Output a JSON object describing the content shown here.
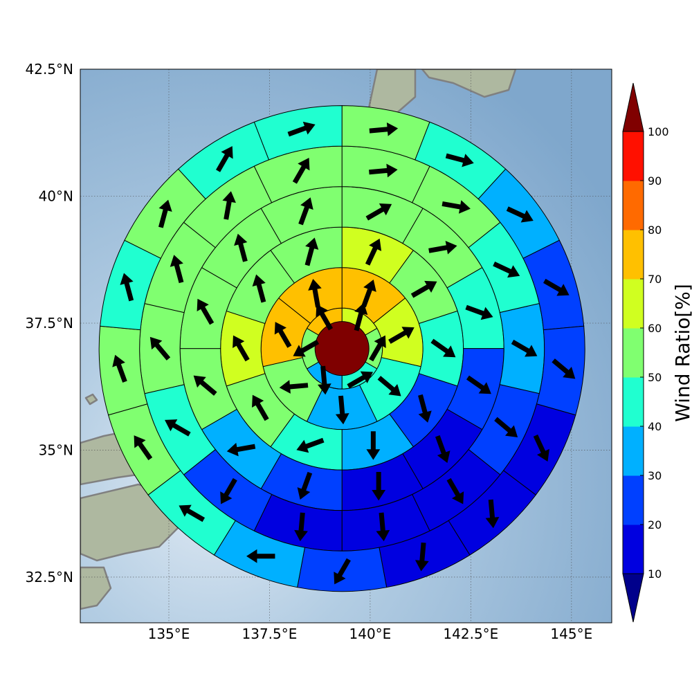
{
  "chart_data": {
    "type": "polar-sector-map",
    "title": "",
    "map": {
      "lon_range": [
        132.8,
        146.0
      ],
      "lat_range": [
        31.6,
        42.5
      ],
      "x_ticks": [
        {
          "value": 135,
          "label": "135°E"
        },
        {
          "value": 137.5,
          "label": "137.5°E"
        },
        {
          "value": 140,
          "label": "140°E"
        },
        {
          "value": 142.5,
          "label": "142.5°E"
        },
        {
          "value": 145,
          "label": "145°E"
        }
      ],
      "y_ticks": [
        {
          "value": 32.5,
          "label": "32.5°N"
        },
        {
          "value": 35,
          "label": "35°N"
        },
        {
          "value": 37.5,
          "label": "37.5°N"
        },
        {
          "value": 40,
          "label": "40°N"
        },
        {
          "value": 42.5,
          "label": "42.5°N"
        }
      ],
      "grid": true,
      "ocean_color": "#8fb4d6",
      "coast_color": "#808080",
      "land_color": "#aeb8a0"
    },
    "center": {
      "lon": 139.3,
      "lat": 37.0,
      "color": "#7f0000"
    },
    "rings": [
      {
        "ring": 1,
        "sectors": [
          {
            "value": 65,
            "dir": 15
          },
          {
            "value": 55,
            "dir": 30
          },
          {
            "value": 45,
            "dir": 60
          },
          {
            "value": 35,
            "dir": 175
          },
          {
            "value": 55,
            "dir": 240
          },
          {
            "value": 75,
            "dir": 330
          }
        ]
      },
      {
        "ring": 2,
        "sectors": [
          {
            "value": 75,
            "dir": 20
          },
          {
            "value": 65,
            "dir": 60
          },
          {
            "value": 45,
            "dir": 130
          },
          {
            "value": 35,
            "dir": 175
          },
          {
            "value": 55,
            "dir": 265
          },
          {
            "value": 75,
            "dir": 330
          },
          {
            "value": 75,
            "dir": 350
          }
        ]
      },
      {
        "ring": 3,
        "sectors": [
          {
            "value": 65,
            "dir": 25
          },
          {
            "value": 55,
            "dir": 60
          },
          {
            "value": 45,
            "dir": 125
          },
          {
            "value": 25,
            "dir": 165
          },
          {
            "value": 35,
            "dir": 180
          },
          {
            "value": 45,
            "dir": 250
          },
          {
            "value": 55,
            "dir": 330
          },
          {
            "value": 65,
            "dir": 330
          },
          {
            "value": 55,
            "dir": 345
          },
          {
            "value": 55,
            "dir": 15
          }
        ]
      },
      {
        "ring": 4,
        "sectors": [
          {
            "value": 55,
            "dir": 60
          },
          {
            "value": 55,
            "dir": 80
          },
          {
            "value": 45,
            "dir": 110
          },
          {
            "value": 25,
            "dir": 125
          },
          {
            "value": 15,
            "dir": 160
          },
          {
            "value": 15,
            "dir": 180
          },
          {
            "value": 25,
            "dir": 200
          },
          {
            "value": 35,
            "dir": 260
          },
          {
            "value": 55,
            "dir": 310
          },
          {
            "value": 55,
            "dir": 330
          },
          {
            "value": 55,
            "dir": 345
          },
          {
            "value": 55,
            "dir": 20
          }
        ]
      },
      {
        "ring": 5,
        "sectors": [
          {
            "value": 55,
            "dir": 85
          },
          {
            "value": 55,
            "dir": 100
          },
          {
            "value": 45,
            "dir": 115
          },
          {
            "value": 35,
            "dir": 120
          },
          {
            "value": 25,
            "dir": 130
          },
          {
            "value": 15,
            "dir": 150
          },
          {
            "value": 15,
            "dir": 175
          },
          {
            "value": 15,
            "dir": 185
          },
          {
            "value": 25,
            "dir": 210
          },
          {
            "value": 45,
            "dir": 300
          },
          {
            "value": 55,
            "dir": 320
          },
          {
            "value": 55,
            "dir": 345
          },
          {
            "value": 55,
            "dir": 10
          },
          {
            "value": 55,
            "dir": 30
          }
        ]
      },
      {
        "ring": 6,
        "sectors": [
          {
            "value": 55,
            "dir": 85
          },
          {
            "value": 45,
            "dir": 105
          },
          {
            "value": 35,
            "dir": 115
          },
          {
            "value": 25,
            "dir": 120
          },
          {
            "value": 25,
            "dir": 130
          },
          {
            "value": 15,
            "dir": 155
          },
          {
            "value": 15,
            "dir": 175
          },
          {
            "value": 15,
            "dir": 185
          },
          {
            "value": 25,
            "dir": 210
          },
          {
            "value": 35,
            "dir": 270
          },
          {
            "value": 45,
            "dir": 300
          },
          {
            "value": 55,
            "dir": 325
          },
          {
            "value": 55,
            "dir": 340
          },
          {
            "value": 45,
            "dir": 345
          },
          {
            "value": 55,
            "dir": 15
          },
          {
            "value": 45,
            "dir": 30
          },
          {
            "value": 45,
            "dir": 70
          }
        ]
      }
    ],
    "colorbar": {
      "label": "Wind Ratio[%]",
      "ticks": [
        10,
        20,
        30,
        40,
        50,
        60,
        70,
        80,
        90,
        100
      ],
      "colors": [
        "#0000e0",
        "#0040ff",
        "#00b0ff",
        "#20ffd0",
        "#80ff70",
        "#d0ff20",
        "#ffc000",
        "#ff6a00",
        "#ff1000"
      ],
      "under_color": "#00008b",
      "over_color": "#800000"
    }
  }
}
